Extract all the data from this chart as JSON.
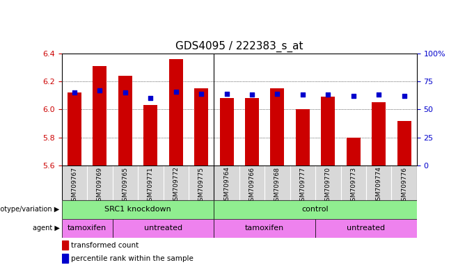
{
  "title": "GDS4095 / 222383_s_at",
  "categories": [
    "GSM709767",
    "GSM709769",
    "GSM709765",
    "GSM709771",
    "GSM709772",
    "GSM709775",
    "GSM709764",
    "GSM709766",
    "GSM709768",
    "GSM709777",
    "GSM709770",
    "GSM709773",
    "GSM709774",
    "GSM709776"
  ],
  "bar_values": [
    6.12,
    6.31,
    6.24,
    6.03,
    6.36,
    6.15,
    6.08,
    6.08,
    6.15,
    6.0,
    6.09,
    5.8,
    6.05,
    5.92
  ],
  "percentile_values": [
    65,
    67,
    65,
    60,
    66,
    64,
    64,
    63,
    64,
    63,
    63,
    62,
    63,
    62
  ],
  "bar_color": "#cc0000",
  "dot_color": "#0000cc",
  "ylim_left": [
    5.6,
    6.4
  ],
  "ylim_right": [
    0,
    100
  ],
  "right_ticks": [
    0,
    25,
    50,
    75,
    100
  ],
  "right_tick_labels": [
    "0",
    "25",
    "50",
    "75",
    "100%"
  ],
  "left_ticks": [
    5.6,
    5.8,
    6.0,
    6.2,
    6.4
  ],
  "bar_baseline": 5.6,
  "bg_color": "#ffffff",
  "tick_label_color_left": "#cc0000",
  "tick_label_color_right": "#0000cc",
  "bar_width": 0.55,
  "title_fontsize": 11
}
